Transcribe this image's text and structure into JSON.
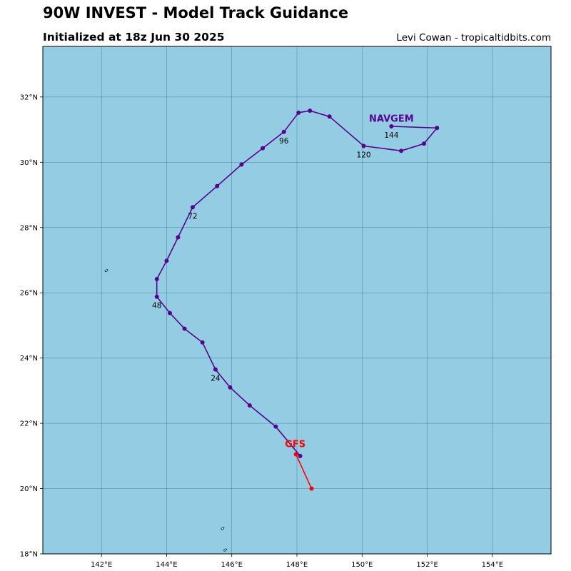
{
  "header": {
    "title": "90W INVEST - Model Track Guidance",
    "subtitle": "Initialized at 18z Jun 30 2025",
    "credit": "Levi Cowan - tropicaltidbits.com"
  },
  "colors": {
    "ocean": "#94cde3",
    "grid": "#2f5f6f",
    "land": "#d6ecd2",
    "navgem": "#57038f",
    "gfs": "#ff0000"
  },
  "chart_data": {
    "type": "map-track",
    "lon_range": [
      140.2,
      155.8
    ],
    "lat_range": [
      18.0,
      33.55
    ],
    "x_ticks": [
      {
        "value": 142,
        "label": "142°E"
      },
      {
        "value": 144,
        "label": "144°E"
      },
      {
        "value": 146,
        "label": "146°E"
      },
      {
        "value": 148,
        "label": "148°E"
      },
      {
        "value": 150,
        "label": "150°E"
      },
      {
        "value": 152,
        "label": "152°E"
      },
      {
        "value": 154,
        "label": "154°E"
      }
    ],
    "y_ticks": [
      {
        "value": 18,
        "label": "18°N"
      },
      {
        "value": 20,
        "label": "20°N"
      },
      {
        "value": 22,
        "label": "22°N"
      },
      {
        "value": 24,
        "label": "24°N"
      },
      {
        "value": 26,
        "label": "26°N"
      },
      {
        "value": 28,
        "label": "28°N"
      },
      {
        "value": 30,
        "label": "30°N"
      },
      {
        "value": 32,
        "label": "32°N"
      }
    ],
    "grid": true,
    "islands": [
      {
        "name": "island",
        "lon": 142.15,
        "lat": 26.68
      },
      {
        "name": "island",
        "lon": 145.72,
        "lat": 18.78
      },
      {
        "name": "island",
        "lon": 145.8,
        "lat": 18.12
      }
    ],
    "series": [
      {
        "name": "NAVGEM",
        "color": "#57038f",
        "label_lon": 150.9,
        "label_lat": 31.35,
        "points": [
          [
            148.1,
            21.0
          ],
          [
            147.35,
            21.9
          ],
          [
            146.55,
            22.55
          ],
          [
            145.95,
            23.1
          ],
          [
            145.5,
            23.65
          ],
          [
            145.1,
            24.48
          ],
          [
            144.55,
            24.9
          ],
          [
            144.1,
            25.38
          ],
          [
            143.7,
            25.88
          ],
          [
            143.7,
            26.42
          ],
          [
            144.0,
            26.98
          ],
          [
            144.35,
            27.7
          ],
          [
            144.8,
            28.62
          ],
          [
            145.55,
            29.27
          ],
          [
            146.3,
            29.93
          ],
          [
            146.95,
            30.43
          ],
          [
            147.6,
            30.93
          ],
          [
            148.05,
            31.52
          ],
          [
            148.4,
            31.58
          ],
          [
            149.0,
            31.4
          ],
          [
            150.05,
            30.5
          ],
          [
            151.2,
            30.35
          ],
          [
            151.9,
            30.57
          ],
          [
            152.3,
            31.05
          ],
          [
            150.9,
            31.1
          ]
        ],
        "hour_labels": [
          {
            "text": "24",
            "lon": 145.5,
            "lat": 23.65
          },
          {
            "text": "48",
            "lon": 143.7,
            "lat": 25.88
          },
          {
            "text": "72",
            "lon": 144.8,
            "lat": 28.62
          },
          {
            "text": "96",
            "lon": 147.6,
            "lat": 30.93
          },
          {
            "text": "120",
            "lon": 150.05,
            "lat": 30.5
          },
          {
            "text": "144",
            "lon": 150.9,
            "lat": 31.1
          }
        ]
      },
      {
        "name": "GFS",
        "color": "#ff0000",
        "label_lon": 147.95,
        "label_lat": 21.38,
        "points": [
          [
            147.97,
            21.05
          ],
          [
            148.45,
            20.0
          ]
        ]
      }
    ]
  }
}
